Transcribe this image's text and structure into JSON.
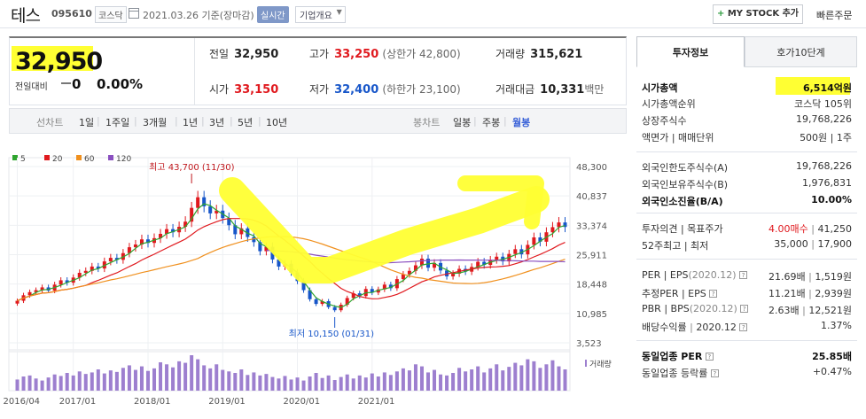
{
  "header": {
    "name": "테스",
    "code": "095610",
    "market": "코스닥",
    "date": "2021.03.26",
    "basis": "기준(장마감)",
    "realtime": "실시간",
    "company_info": "기업개요",
    "mystock_label": "MY STOCK 추가",
    "quick_order": "빠른주문"
  },
  "quote": {
    "price": "32,950",
    "change_label": "전일대비",
    "change_value": "0",
    "change_pct": "0.00%",
    "prev_label": "전일",
    "prev": "32,950",
    "high_label": "고가",
    "high": "33,250",
    "upper_limit": "(상한가 42,800)",
    "volume_label": "거래량",
    "volume": "315,621",
    "open_label": "시가",
    "open": "33,150",
    "low_label": "저가",
    "low": "32,400",
    "lower_limit": "(하한가 23,100)",
    "amount_label": "거래대금",
    "amount": "10,331",
    "amount_unit": "백만"
  },
  "periods": {
    "line_label": "선차트",
    "line_items": [
      "1일",
      "1주일",
      "3개월",
      "1년",
      "3년",
      "5년",
      "10년"
    ],
    "candle_label": "봉차트",
    "candle_items": [
      "일봉",
      "주봉",
      "월봉"
    ],
    "active": "월봉"
  },
  "chart_data": {
    "type": "candlestick",
    "interval": "monthly",
    "legend": [
      {
        "name": "5",
        "color": "#2fa52f"
      },
      {
        "name": "20",
        "color": "#e0191e"
      },
      {
        "name": "60",
        "color": "#f0901e"
      },
      {
        "name": "120",
        "color": "#8a4fc0"
      }
    ],
    "y_ticks": [
      "48,300",
      "40,837",
      "33,374",
      "25,911",
      "18,448",
      "10,985",
      "3,523"
    ],
    "ylim": [
      3523,
      48300
    ],
    "x_ticks": [
      "2016/04",
      "2017/01",
      "2018/01",
      "2019/01",
      "2020/01",
      "2021/01"
    ],
    "high_annotation": "최고 43,700 (11/30)",
    "low_annotation": "최저 10,150 (01/31)",
    "volume_label": "거래량",
    "closes": [
      14200,
      15600,
      16400,
      16900,
      17600,
      16800,
      18300,
      19400,
      18800,
      20100,
      21300,
      21800,
      22900,
      22400,
      24200,
      25100,
      24600,
      26300,
      27800,
      28500,
      29800,
      28900,
      30100,
      31200,
      32400,
      31600,
      33000,
      34300,
      37800,
      40500,
      38200,
      36400,
      37100,
      35200,
      33400,
      31100,
      32600,
      30400,
      29100,
      26800,
      27900,
      24700,
      22900,
      23600,
      21400,
      19200,
      16900,
      14600,
      13400,
      14100,
      12600,
      11800,
      13200,
      14900,
      16100,
      15400,
      17200,
      16300,
      17100,
      18300,
      17400,
      19700,
      20900,
      21800,
      23200,
      24900,
      22600,
      23800,
      21900,
      20400,
      21100,
      22300,
      21600,
      22800,
      24100,
      23300,
      24600,
      25400,
      24200,
      26100,
      27300,
      26000,
      28400,
      30300,
      29200,
      31600,
      32900,
      34100,
      32950
    ],
    "volume": [
      22,
      28,
      30,
      24,
      20,
      26,
      32,
      29,
      35,
      30,
      38,
      33,
      36,
      42,
      34,
      40,
      37,
      45,
      50,
      41,
      48,
      39,
      44,
      56,
      52,
      46,
      58,
      55,
      70,
      62,
      50,
      44,
      52,
      41,
      38,
      35,
      42,
      31,
      36,
      30,
      33,
      27,
      24,
      29,
      22,
      26,
      20,
      28,
      35,
      25,
      30,
      21,
      27,
      32,
      24,
      30,
      26,
      34,
      28,
      36,
      31,
      38,
      44,
      40,
      52,
      48,
      36,
      41,
      32,
      30,
      35,
      45,
      38,
      42,
      48,
      36,
      44,
      52,
      40,
      47,
      55,
      50,
      62,
      58,
      45,
      52,
      60,
      48,
      42
    ]
  },
  "side": {
    "tab_active": "투자정보",
    "tab_other": "호가10단계",
    "market_cap_label": "시가총액",
    "market_cap": "6,514억원",
    "rank_label": "시가총액순위",
    "rank": "코스닥 105위",
    "shares_label": "상장주식수",
    "shares": "19,768,226",
    "face_label": "액면가 | 매매단위",
    "face": "500원 | 1주",
    "foreign_limit_label": "외국인한도주식수(A)",
    "foreign_limit": "19,768,226",
    "foreign_hold_label": "외국인보유주식수(B)",
    "foreign_hold": "1,976,831",
    "foreign_ratio_label": "외국인소진율(B/A)",
    "foreign_ratio": "10.00%",
    "opinion_label": "투자의견 | 목표주가",
    "opinion": "4.00매수",
    "target": "41,250",
    "week52_label": "52주최고 | 최저",
    "week52_high": "35,000",
    "week52_low": "17,900",
    "per_label": "PER | EPS",
    "per_period": "(2020.12)",
    "per": "21.69배",
    "eps": "1,519원",
    "eper_label": "추정PER | EPS",
    "eper": "11.21배",
    "eeps": "2,939원",
    "pbr_label": "PBR | BPS",
    "pbr_period": "(2020.12)",
    "pbr": "2.63배",
    "bps": "12,521원",
    "div_label": "배당수익률",
    "div_period": "2020.12",
    "div": "1.37%",
    "ind_per_label": "동일업종 PER",
    "ind_per": "25.85배",
    "ind_rate_label": "동일업종 등락률",
    "ind_rate": "+0.47%"
  }
}
